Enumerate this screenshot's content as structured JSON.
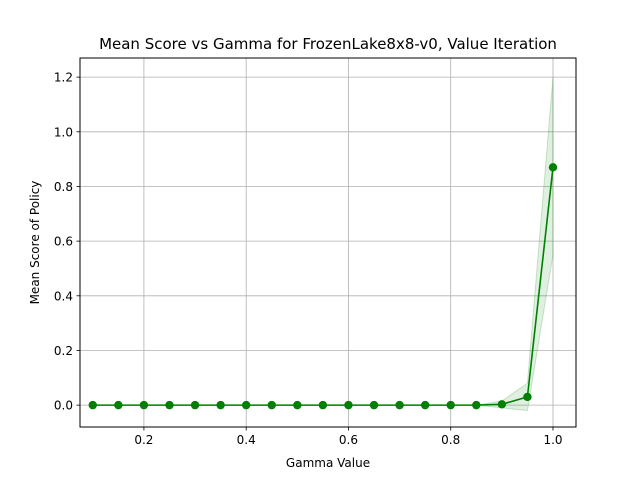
{
  "chart_data": {
    "type": "line",
    "title": "Mean Score vs Gamma for FrozenLake8x8-v0, Value Iteration",
    "xlabel": "Gamma Value",
    "ylabel": "Mean Score of Policy",
    "xlim": [
      0.075,
      1.045
    ],
    "ylim": [
      -0.08,
      1.27
    ],
    "xticks": [
      0.2,
      0.4,
      0.6,
      0.8,
      1.0
    ],
    "xtick_labels": [
      "0.2",
      "0.4",
      "0.6",
      "0.8",
      "1.0"
    ],
    "yticks": [
      0.0,
      0.2,
      0.4,
      0.6,
      0.8,
      1.0,
      1.2
    ],
    "ytick_labels": [
      "0.0",
      "0.2",
      "0.4",
      "0.6",
      "0.8",
      "1.0",
      "1.2"
    ],
    "grid": true,
    "legend": "none",
    "series": [
      {
        "color": "#008000",
        "band_color": "#008000",
        "marker": "circle",
        "x": [
          0.1,
          0.15,
          0.2,
          0.25,
          0.3,
          0.35,
          0.4,
          0.45,
          0.5,
          0.55,
          0.6,
          0.65,
          0.7,
          0.75,
          0.8,
          0.85,
          0.9,
          0.95,
          1.0
        ],
        "y": [
          0.0,
          0.0,
          0.0,
          0.0,
          0.0,
          0.0,
          0.0,
          0.0,
          0.0,
          0.0,
          0.0,
          0.0,
          0.0,
          0.0,
          0.0,
          0.0,
          0.003,
          0.03,
          0.87
        ],
        "y_lower": [
          0.0,
          0.0,
          0.0,
          0.0,
          0.0,
          0.0,
          0.0,
          0.0,
          0.0,
          0.0,
          0.0,
          0.0,
          0.0,
          0.0,
          0.0,
          0.0,
          -0.01,
          -0.02,
          0.55
        ],
        "y_upper": [
          0.0,
          0.0,
          0.0,
          0.0,
          0.0,
          0.0,
          0.0,
          0.0,
          0.0,
          0.0,
          0.0,
          0.0,
          0.0,
          0.0,
          0.0,
          0.0,
          0.015,
          0.08,
          1.2
        ]
      }
    ]
  }
}
